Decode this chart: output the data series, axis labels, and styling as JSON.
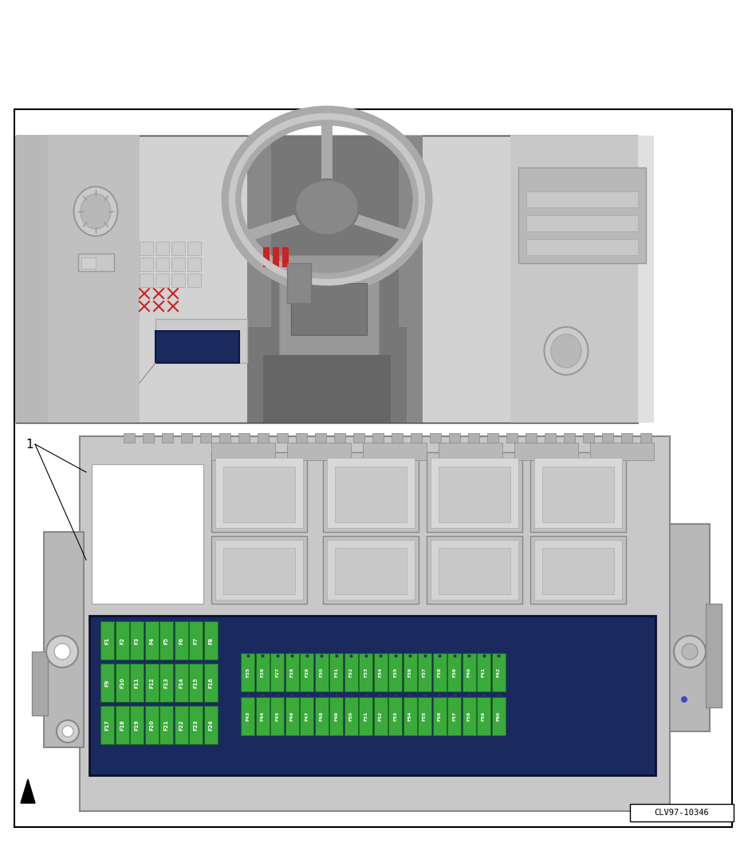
{
  "bg_color": "#ffffff",
  "border_color": "#000000",
  "fuse_green": "#3aaa3a",
  "fuse_text_color": "#ffffff",
  "navy_blue": "#1a2a5e",
  "gray_light": "#c8c8c8",
  "gray_med": "#aaaaaa",
  "gray_dark": "#888888",
  "row1_fuses": [
    "F1",
    "F2",
    "F3",
    "F4",
    "F5",
    "F6",
    "F7",
    "F8"
  ],
  "row2_fuses": [
    "F9",
    "F10",
    "F11",
    "F12",
    "F13",
    "F14",
    "F15",
    "F16"
  ],
  "row3_fuses": [
    "F17",
    "F18",
    "F19",
    "F20",
    "F21",
    "F22",
    "F23",
    "F24"
  ],
  "row4_fuses": [
    "F25",
    "F26",
    "F27",
    "F28",
    "F29",
    "F30",
    "F31",
    "F32",
    "F33",
    "F34",
    "F35",
    "F36",
    "F37",
    "F38",
    "F39",
    "F40",
    "F41",
    "F42"
  ],
  "row5_fuses": [
    "F43",
    "F44",
    "F45",
    "F46",
    "F47",
    "F48",
    "F49",
    "F50",
    "F51",
    "F52",
    "F53",
    "F54",
    "F55",
    "F56",
    "F57",
    "F58",
    "F59",
    "F60"
  ],
  "label_1": "1",
  "code": "CLV97-10346"
}
